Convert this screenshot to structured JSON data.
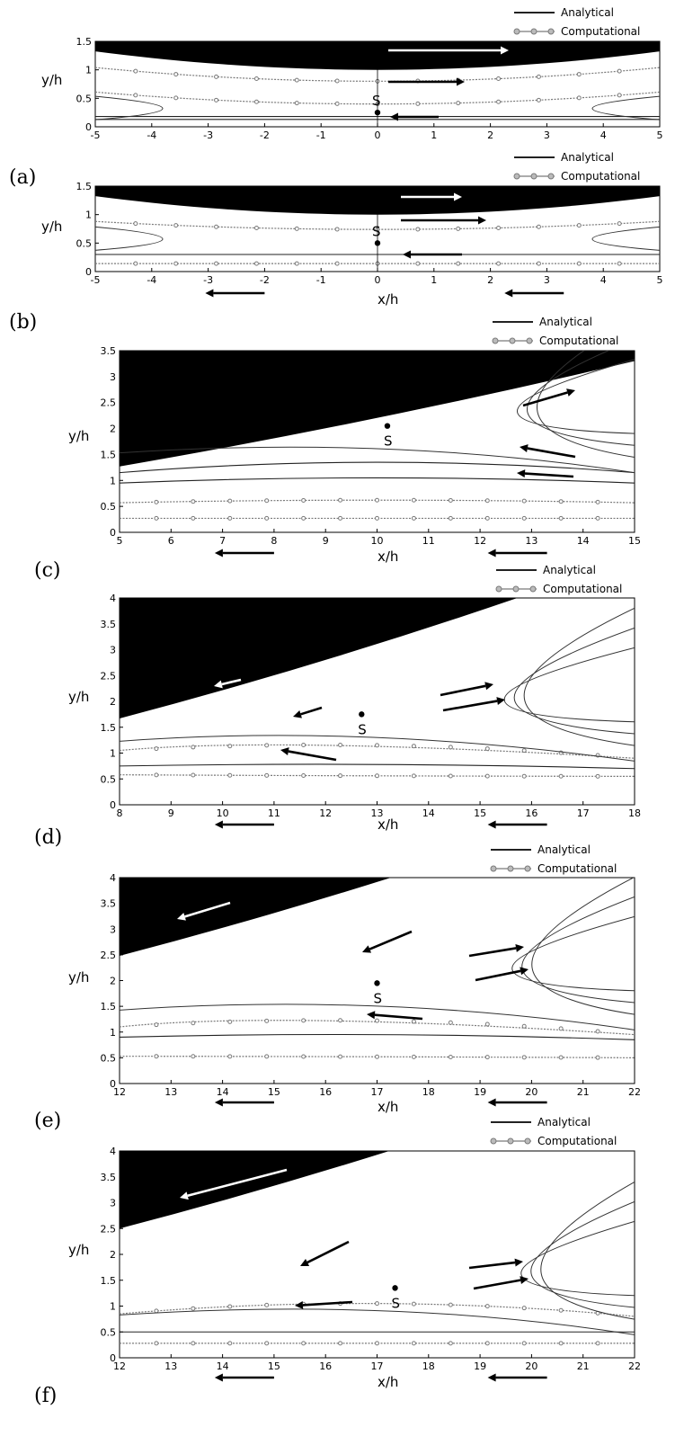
{
  "legend": {
    "analytical": "Analytical",
    "computational": "Computational"
  },
  "axes": {
    "x_label": "x/h",
    "y_label": "y/h"
  },
  "stagnation_label": "S",
  "colors": {
    "wall": "#000000",
    "analytical": "#222222",
    "computational": "#7a7a7a"
  },
  "chart_data": [
    {
      "type": "line",
      "panel": "(a)",
      "xlim": [
        -5,
        5
      ],
      "ylim": [
        0,
        1.5
      ],
      "xticks": [
        "-5",
        "-4",
        "-3",
        "-2",
        "-1",
        "0",
        "1",
        "2",
        "3",
        "4",
        "5"
      ],
      "yticks": [
        "0",
        "0.5",
        "1",
        "1.5"
      ],
      "show_xlabel": false,
      "wall": {
        "y_center": 1.0,
        "curvature": 0.013
      },
      "stagnation_point": {
        "x": 0,
        "y": 0.25
      },
      "series": [
        {
          "kind": "analytical",
          "x": [
            -5,
            0,
            5
          ],
          "y": [
            0.18,
            0.18,
            0.18
          ]
        },
        {
          "kind": "analytical",
          "x": [
            -5,
            0,
            5
          ],
          "y": [
            0.13,
            0.13,
            0.13
          ]
        },
        {
          "kind": "computational",
          "x": [
            -5,
            0,
            5
          ],
          "y": [
            0.61,
            0.4,
            0.61
          ]
        },
        {
          "kind": "computational",
          "x": [
            -5,
            0,
            5
          ],
          "y": [
            1.04,
            0.8,
            1.04
          ]
        }
      ]
    },
    {
      "type": "line",
      "panel": "(b)",
      "xlim": [
        -5,
        5
      ],
      "ylim": [
        0,
        1.5
      ],
      "xticks": [
        "-5",
        "-4",
        "-3",
        "-2",
        "-1",
        "0",
        "1",
        "2",
        "3",
        "4",
        "5"
      ],
      "yticks": [
        "0",
        "0.5",
        "1",
        "1.5"
      ],
      "show_xlabel": true,
      "wall": {
        "y_center": 1.0,
        "curvature": 0.013
      },
      "stagnation_point": {
        "x": 0,
        "y": 0.5
      },
      "series": [
        {
          "kind": "computational",
          "x": [
            -5,
            0,
            5
          ],
          "y": [
            0.14,
            0.14,
            0.14
          ]
        },
        {
          "kind": "analytical",
          "x": [
            -5,
            0,
            5
          ],
          "y": [
            0.3,
            0.3,
            0.3
          ]
        },
        {
          "kind": "computational",
          "x": [
            -5,
            0,
            5
          ],
          "y": [
            0.88,
            0.74,
            0.88
          ]
        }
      ]
    },
    {
      "type": "line",
      "panel": "(c)",
      "xlim": [
        5,
        15
      ],
      "ylim": [
        0,
        3.5
      ],
      "xticks": [
        "5",
        "6",
        "7",
        "8",
        "9",
        "10",
        "11",
        "12",
        "13",
        "14",
        "15"
      ],
      "yticks": [
        "0",
        "0.5",
        "1",
        "1.5",
        "2",
        "2.5",
        "3",
        "3.5"
      ],
      "show_xlabel": true,
      "wall": {
        "x0": 5,
        "y0": 1.27,
        "x1": 15,
        "y1": 3.3
      },
      "stagnation_point": {
        "x": 10.2,
        "y": 2.05
      },
      "series": [
        {
          "kind": "computational",
          "x": [
            5,
            10,
            15
          ],
          "y": [
            0.27,
            0.27,
            0.27
          ]
        },
        {
          "kind": "computational",
          "x": [
            5,
            10,
            15
          ],
          "y": [
            0.57,
            0.62,
            0.57
          ]
        },
        {
          "kind": "analytical",
          "x": [
            5,
            10,
            15
          ],
          "y": [
            0.95,
            1.05,
            0.95
          ]
        },
        {
          "kind": "analytical",
          "x": [
            5,
            10,
            15
          ],
          "y": [
            1.15,
            1.35,
            1.15
          ]
        }
      ]
    },
    {
      "type": "line",
      "panel": "(d)",
      "xlim": [
        8,
        18
      ],
      "ylim": [
        0,
        4
      ],
      "xticks": [
        "8",
        "9",
        "10",
        "11",
        "12",
        "13",
        "14",
        "15",
        "16",
        "17",
        "18"
      ],
      "yticks": [
        "0",
        "0.5",
        "1",
        "1.5",
        "2",
        "2.5",
        "3",
        "3.5",
        "4"
      ],
      "show_xlabel": true,
      "wall": {
        "x0": 8,
        "y0": 1.67,
        "x1": 18,
        "y1": 4.8
      },
      "stagnation_point": {
        "x": 12.7,
        "y": 1.75
      },
      "series": [
        {
          "kind": "computational",
          "x": [
            8,
            13,
            18
          ],
          "y": [
            0.58,
            0.56,
            0.55
          ]
        },
        {
          "kind": "analytical",
          "x": [
            8,
            13,
            18
          ],
          "y": [
            0.75,
            0.78,
            0.7
          ]
        },
        {
          "kind": "computational",
          "x": [
            8,
            11,
            18
          ],
          "y": [
            1.05,
            1.15,
            0.9
          ]
        }
      ]
    },
    {
      "type": "line",
      "panel": "(e)",
      "xlim": [
        12,
        22
      ],
      "ylim": [
        0,
        4
      ],
      "xticks": [
        "12",
        "13",
        "14",
        "15",
        "16",
        "17",
        "18",
        "19",
        "20",
        "21",
        "22"
      ],
      "yticks": [
        "0",
        "0.5",
        "1",
        "1.5",
        "2",
        "2.5",
        "3",
        "3.5",
        "4"
      ],
      "show_xlabel": true,
      "wall": {
        "x0": 12,
        "y0": 2.48,
        "x1": 22,
        "y1": 5.6
      },
      "stagnation_point": {
        "x": 17,
        "y": 1.95
      },
      "series": [
        {
          "kind": "computational",
          "x": [
            12,
            17,
            22
          ],
          "y": [
            0.53,
            0.52,
            0.5
          ]
        },
        {
          "kind": "analytical",
          "x": [
            12,
            17,
            22
          ],
          "y": [
            0.9,
            0.95,
            0.85
          ]
        },
        {
          "kind": "computational",
          "x": [
            12,
            15,
            22
          ],
          "y": [
            1.1,
            1.22,
            0.95
          ]
        }
      ]
    },
    {
      "type": "line",
      "panel": "(f)",
      "xlim": [
        12,
        22
      ],
      "ylim": [
        0,
        4
      ],
      "xticks": [
        "12",
        "13",
        "14",
        "15",
        "16",
        "17",
        "18",
        "19",
        "20",
        "21",
        "22"
      ],
      "yticks": [
        "0",
        "0.5",
        "1",
        "1.5",
        "2",
        "2.5",
        "3",
        "3.5",
        "4"
      ],
      "show_xlabel": true,
      "wall": {
        "x0": 12,
        "y0": 2.5,
        "x1": 22,
        "y1": 5.6
      },
      "stagnation_point": {
        "x": 17.35,
        "y": 1.35
      },
      "series": [
        {
          "kind": "computational",
          "x": [
            12,
            17,
            22
          ],
          "y": [
            0.28,
            0.28,
            0.28
          ]
        },
        {
          "kind": "analytical",
          "x": [
            12,
            17,
            22
          ],
          "y": [
            0.5,
            0.5,
            0.5
          ]
        },
        {
          "kind": "computational",
          "x": [
            12,
            17,
            22
          ],
          "y": [
            0.85,
            1.05,
            0.8
          ]
        }
      ]
    }
  ]
}
